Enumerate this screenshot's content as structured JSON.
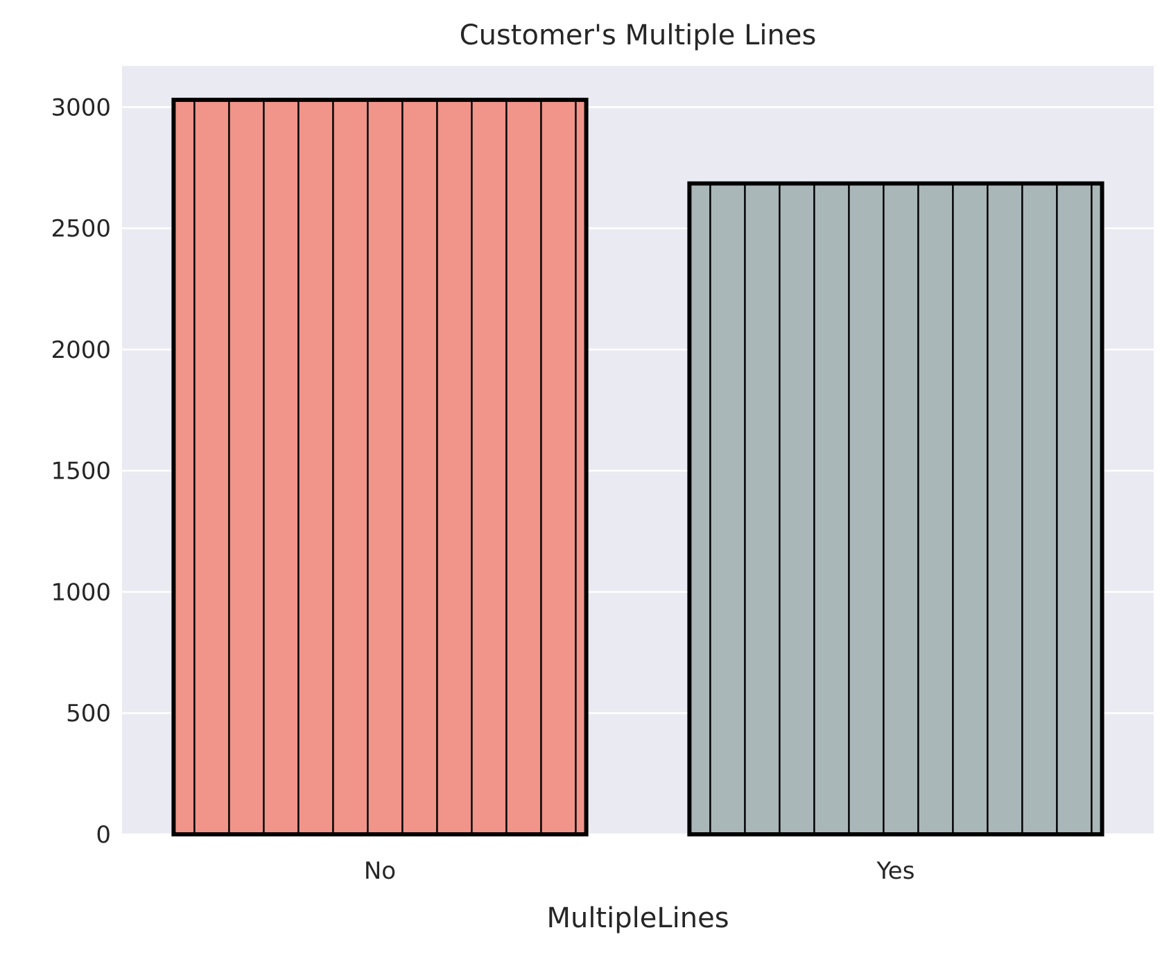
{
  "chart_data": {
    "type": "bar",
    "title": "Customer's Multiple Lines",
    "xlabel": "MultipleLines",
    "ylabel": "",
    "categories": [
      "No",
      "Yes"
    ],
    "values": [
      3030,
      2685
    ],
    "ylim": [
      0,
      3170
    ],
    "yticks": [
      0,
      500,
      1000,
      1500,
      2000,
      2500,
      3000
    ],
    "grid": true,
    "legend": false,
    "hatch": "vertical lines",
    "colors": {
      "bars": [
        "#F1948A",
        "#AAB7B8"
      ],
      "edge": "#000000",
      "plot_background": "#EAEAF2",
      "grid": "#FFFFFF",
      "text": "#262626"
    }
  }
}
